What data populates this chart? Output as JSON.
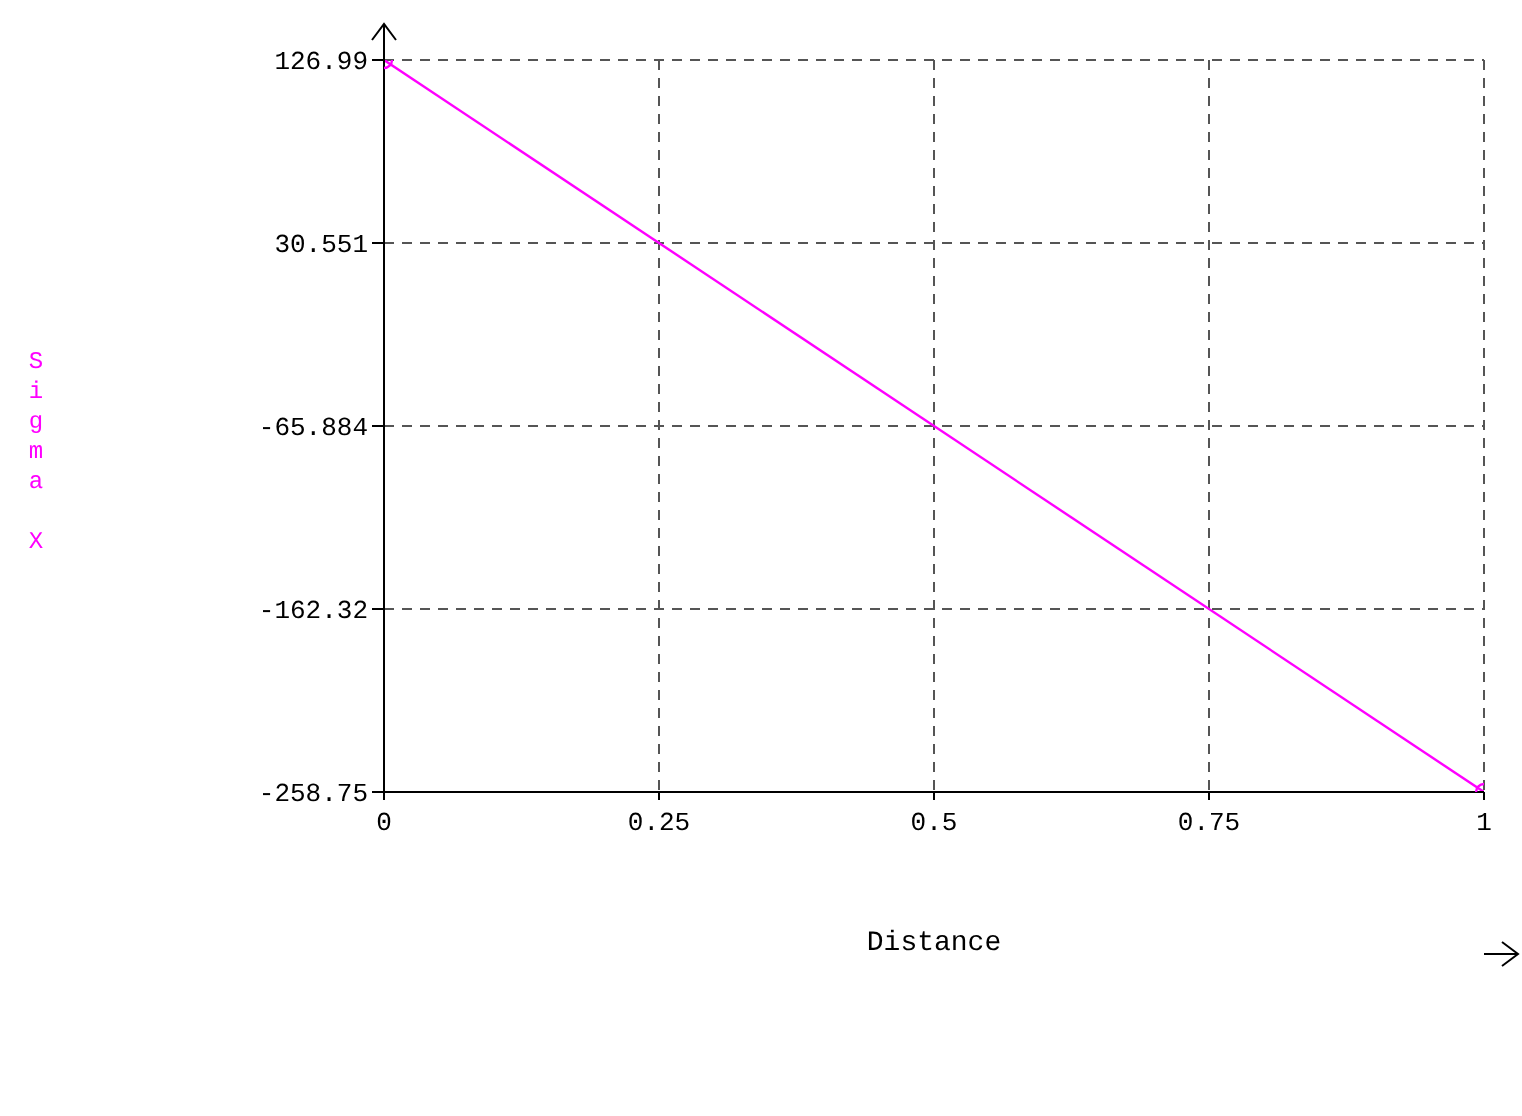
{
  "chart_data": {
    "type": "line",
    "xlabel": "Distance",
    "ylabel": "Sigma X",
    "x": [
      0,
      1
    ],
    "series": [
      {
        "color": "#ff00ff",
        "values": [
          126.99,
          -258.75
        ]
      }
    ],
    "xlim": [
      0,
      1
    ],
    "xticks": [
      0,
      0.25,
      0.5,
      0.75,
      1
    ],
    "ylim": [
      -258.75,
      126.99
    ],
    "yticks": [
      126.99,
      30.551,
      -65.884,
      -162.32,
      -258.75
    ],
    "grid": true,
    "marker": "circle",
    "line_style": "solid"
  }
}
